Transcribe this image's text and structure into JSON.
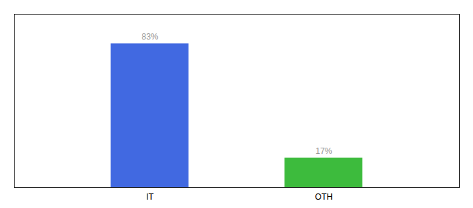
{
  "chart_data": {
    "type": "bar",
    "categories": [
      "IT",
      "OTH"
    ],
    "values": [
      83,
      17
    ],
    "colors": [
      "#4169e1",
      "#3dbb3d"
    ],
    "ylim": [
      0,
      100
    ],
    "data_labels": true,
    "value_labels": [
      "83%",
      "17%"
    ],
    "tick_labels": "x",
    "grid": false
  }
}
